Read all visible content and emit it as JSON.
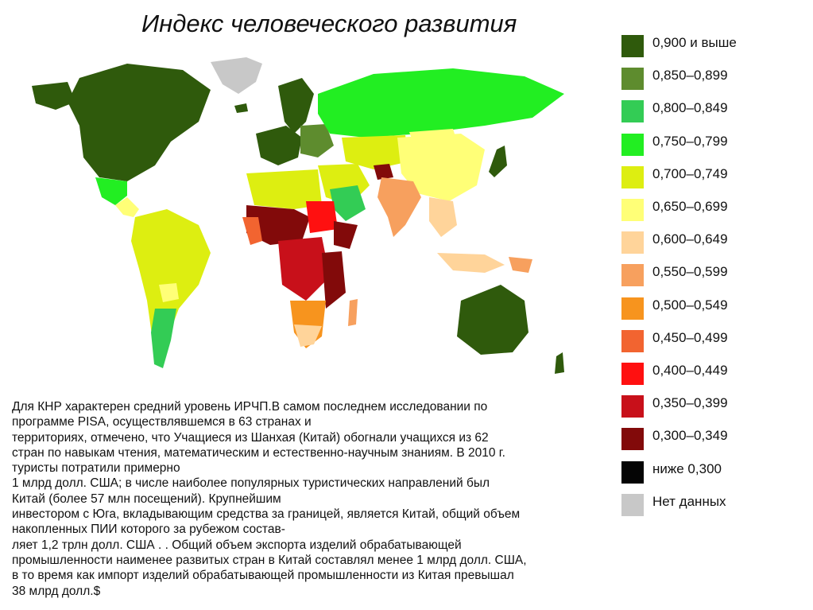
{
  "title": "Индекс человеческого развития",
  "legend": [
    {
      "label": "0,900 и выше",
      "color": "#2f5a0c"
    },
    {
      "label": "0,850–0,899",
      "color": "#5e8c2e"
    },
    {
      "label": "0,800–0,849",
      "color": "#33cc55"
    },
    {
      "label": "0,750–0,799",
      "color": "#22ee22"
    },
    {
      "label": "0,700–0,749",
      "color": "#ddee11"
    },
    {
      "label": "0,650–0,699",
      "color": "#ffff77"
    },
    {
      "label": "0,600–0,649",
      "color": "#ffd49a"
    },
    {
      "label": "0,550–0,599",
      "color": "#f7a05e"
    },
    {
      "label": "0,500–0,549",
      "color": "#f7941e"
    },
    {
      "label": "0,450–0,499",
      "color": "#f26430"
    },
    {
      "label": "0,400–0,449",
      "color": "#ff1010"
    },
    {
      "label": "0,350–0,399",
      "color": "#c8101a"
    },
    {
      "label": "0,300–0,349",
      "color": "#820a0a"
    },
    {
      "label": "ниже 0,300",
      "color": "#050505"
    },
    {
      "label": "Нет данных",
      "color": "#c8c8c8"
    }
  ],
  "body_lines": [
    "Для КНР характерен средний уровень  ИРЧП.В самом последнем исследовании по",
    "программе PISA, осуществлявшемся в 63 странах и",
    "территориях, отмечено, что  Учащиеся из Шанхая (Китай) обогнали учащихся из 62",
    "стран по навыкам чтения, математическим и естественно-научным знаниям. В  2010 г.",
    "туристы потратили примерно",
    "1  млрд  долл. США; в числе наиболее популярных туристических направлений был",
    "Китай (более 57 млн посещений). Крупнейшим",
    "инвестором с Юга, вкладывающим средства за границей, является Китай, общий объем",
    "накопленных ПИИ которого за рубежом состав-",
    "ляет 1,2 трлн долл. США . . Общий объем экспорта изделий обрабатывающей",
    "промышленности наименее развитых стран в Китай составлял менее 1 млрд долл. США,",
    "в то время как импорт изделий обрабатывающей промышленности из Китая превышал",
    "38 млрд долл.$"
  ]
}
